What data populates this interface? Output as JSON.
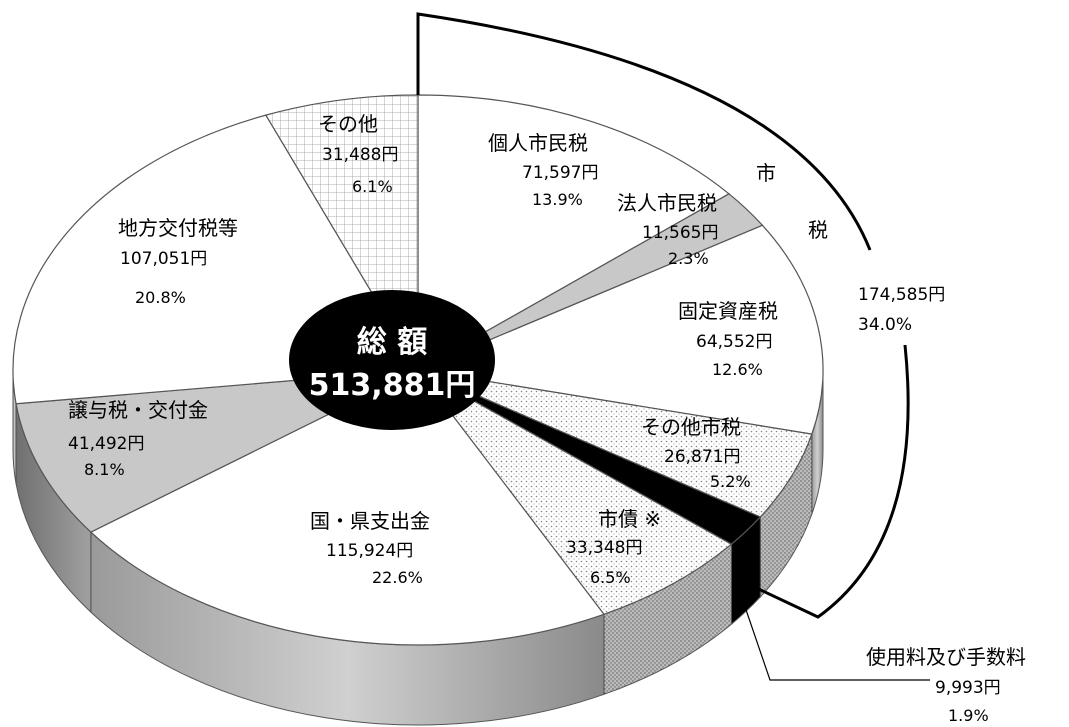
{
  "chart_data": {
    "type": "pie",
    "title": "",
    "center_label": "総 額",
    "center_value": "513,881円",
    "slices": [
      {
        "name": "個人市民税",
        "amount": "71,597円",
        "percent": "13.9%",
        "value": 71597,
        "pattern": "white"
      },
      {
        "name": "法人市民税",
        "amount": "11,565円",
        "percent": "2.3%",
        "value": 11565,
        "pattern": "gray"
      },
      {
        "name": "固定資産税",
        "amount": "64,552円",
        "percent": "12.6%",
        "value": 64552,
        "pattern": "white"
      },
      {
        "name": "その他市税",
        "amount": "26,871円",
        "percent": "5.2%",
        "value": 26871,
        "pattern": "dots"
      },
      {
        "name": "使用料及び手数料",
        "amount": "9,993円",
        "percent": "1.9%",
        "value": 9993,
        "pattern": "black"
      },
      {
        "name": "市債 ※",
        "amount": "33,348円",
        "percent": "6.5%",
        "value": 33348,
        "pattern": "dots"
      },
      {
        "name": "国・県支出金",
        "amount": "115,924円",
        "percent": "22.6%",
        "value": 115924,
        "pattern": "white"
      },
      {
        "name": "譲与税・交付金",
        "amount": "41,492円",
        "percent": "8.1%",
        "value": 41492,
        "pattern": "gray"
      },
      {
        "name": "地方交付税等",
        "amount": "107,051円",
        "percent": "20.8%",
        "value": 107051,
        "pattern": "white"
      },
      {
        "name": "その他",
        "amount": "31,488円",
        "percent": "6.1%",
        "value": 31488,
        "pattern": "grid"
      }
    ],
    "group": {
      "label_1": "市",
      "label_2": "税",
      "amount": "174,585円",
      "percent": "34.0%"
    }
  }
}
